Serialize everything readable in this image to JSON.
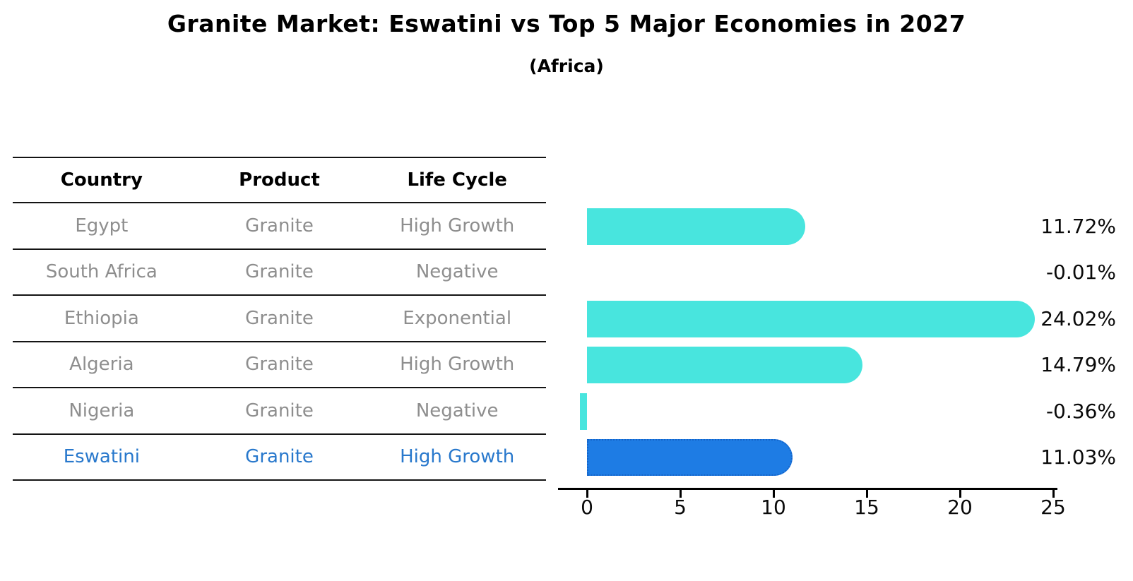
{
  "title": "Granite Market: Eswatini vs Top 5 Major Economies in 2027",
  "subtitle": "(Africa)",
  "table": {
    "headers": [
      "Country",
      "Product",
      "Life Cycle"
    ],
    "rows": [
      {
        "country": "Egypt",
        "product": "Granite",
        "life_cycle": "High Growth",
        "highlighted": false
      },
      {
        "country": "South Africa",
        "product": "Granite",
        "life_cycle": "Negative",
        "highlighted": false
      },
      {
        "country": "Ethiopia",
        "product": "Granite",
        "life_cycle": "Exponential",
        "highlighted": false
      },
      {
        "country": "Algeria",
        "product": "Granite",
        "life_cycle": "High Growth",
        "highlighted": false
      },
      {
        "country": "Nigeria",
        "product": "Granite",
        "life_cycle": "Negative",
        "highlighted": false
      },
      {
        "country": "Eswatini",
        "product": "Granite",
        "life_cycle": "High Growth",
        "highlighted": true
      }
    ]
  },
  "chart_data": {
    "type": "bar",
    "orientation": "horizontal",
    "title": "Granite Market: Eswatini vs Top 5 Major Economies in 2027",
    "subtitle": "(Africa)",
    "categories": [
      "Egypt",
      "South Africa",
      "Ethiopia",
      "Algeria",
      "Nigeria",
      "Eswatini"
    ],
    "values": [
      11.72,
      -0.01,
      24.02,
      14.79,
      -0.36,
      11.03
    ],
    "value_labels": [
      "11.72%",
      "-0.01%",
      "24.02%",
      "14.79%",
      "-0.36%",
      "11.03%"
    ],
    "x_ticks": [
      0,
      5,
      10,
      15,
      20,
      25
    ],
    "xlim": [
      -1.55,
      25.2
    ],
    "grid": false,
    "legend": false,
    "highlight_index": 5
  },
  "colors": {
    "bar": "#48E5DE",
    "highlight_bar": "#1E7CE4",
    "highlight_bar_border": "#1463C8",
    "row_text": "#8e8e8e",
    "highlight_text": "#2878CC",
    "axis": "#000000"
  }
}
